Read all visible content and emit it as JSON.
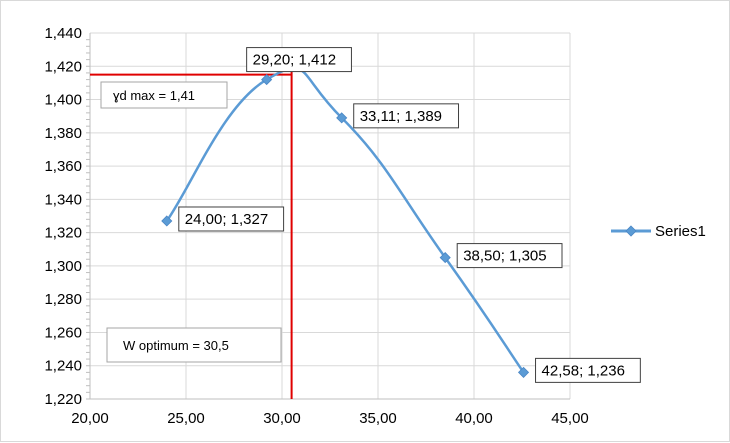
{
  "chart_data": {
    "type": "scatter",
    "title": "",
    "xlabel": "",
    "ylabel": "",
    "xlim": [
      20,
      45
    ],
    "ylim": [
      1.22,
      1.44
    ],
    "x_ticks": [
      "20,00",
      "25,00",
      "30,00",
      "35,00",
      "40,00",
      "45,00"
    ],
    "y_ticks": [
      "1,220",
      "1,240",
      "1,260",
      "1,280",
      "1,300",
      "1,320",
      "1,340",
      "1,360",
      "1,380",
      "1,400",
      "1,420",
      "1,440"
    ],
    "grid": true,
    "smooth_line": true,
    "legend_position": "right",
    "series": [
      {
        "name": "Series1",
        "color": "#5b9bd5",
        "points": [
          {
            "x": 24.0,
            "y": 1.327,
            "label": "24,00; 1,327"
          },
          {
            "x": 29.2,
            "y": 1.412,
            "label": "29,20; 1,412"
          },
          {
            "x": 33.11,
            "y": 1.389,
            "label": "33,11; 1,389"
          },
          {
            "x": 38.5,
            "y": 1.305,
            "label": "38,50; 1,305"
          },
          {
            "x": 42.58,
            "y": 1.236,
            "label": "42,58; 1,236"
          }
        ]
      }
    ],
    "reference_lines": {
      "color": "#e00000",
      "vertical_x": 30.5,
      "horizontal_y": 1.415
    },
    "annotations": {
      "gd_max": "ɣd max = 1,41",
      "w_optimum": "W optimum =  30,5"
    }
  }
}
